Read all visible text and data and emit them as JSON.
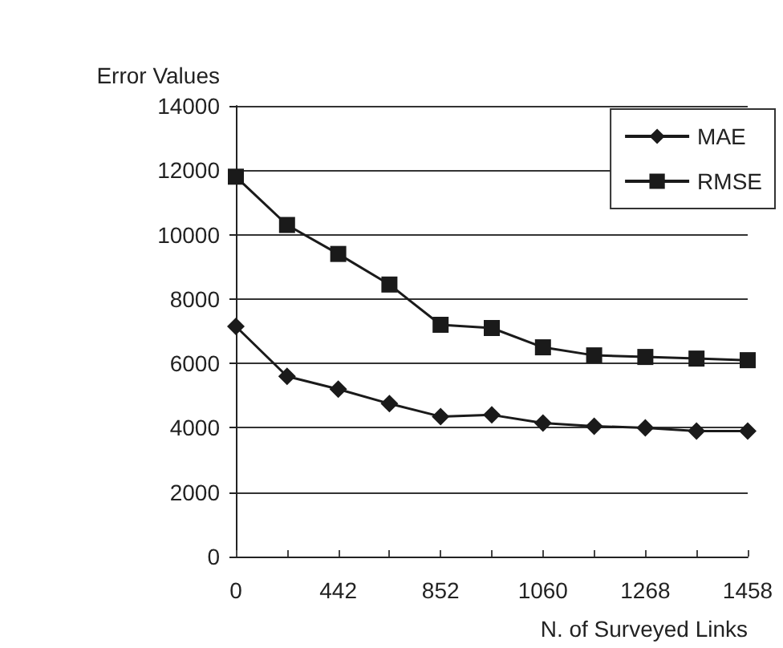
{
  "chart_data": {
    "type": "line",
    "xlabel": "N. of Surveyed Links",
    "ylabel": "Error Values",
    "categories": [
      "0",
      null,
      "442",
      null,
      "852",
      null,
      "1060",
      null,
      "1268",
      null,
      "1458"
    ],
    "series": [
      {
        "name": "MAE",
        "color": "#1a1a1a",
        "marker": "diamond",
        "values": [
          7150,
          5600,
          5200,
          4750,
          4350,
          4400,
          4150,
          4050,
          4000,
          3900,
          3900
        ]
      },
      {
        "name": "RMSE",
        "color": "#1a1a1a",
        "marker": "square",
        "values": [
          11800,
          10300,
          9400,
          8450,
          7200,
          7100,
          6500,
          6250,
          6200,
          6150,
          6100
        ]
      }
    ],
    "ylim": [
      0,
      14000
    ],
    "yticks": [
      0,
      2000,
      4000,
      6000,
      8000,
      10000,
      12000,
      14000
    ],
    "grid": "y",
    "legend": "top right",
    "line_style": "solid"
  }
}
